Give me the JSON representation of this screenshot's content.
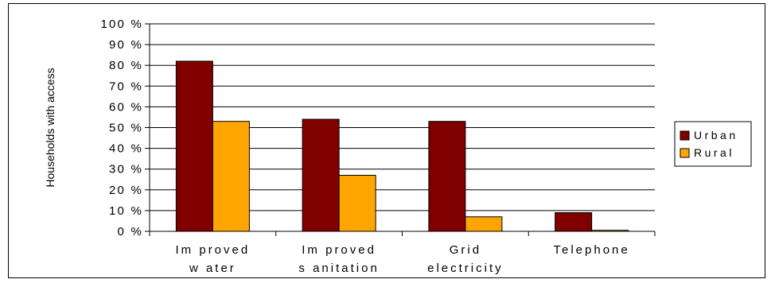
{
  "chart_data": {
    "type": "bar",
    "ylabel": "Households with access",
    "yticks": [
      "0 %",
      "10 %",
      "20 %",
      "30 %",
      "40 %",
      "50 %",
      "60 %",
      "70 %",
      "80 %",
      "90 %",
      "100 %"
    ],
    "ylim": [
      0,
      100
    ],
    "grid": true,
    "legend_position": "right",
    "categories": [
      [
        "Im proved",
        "w ater"
      ],
      [
        "Im proved",
        "s anitation"
      ],
      [
        "Grid",
        "electricity"
      ],
      [
        "Telephone"
      ]
    ],
    "series": [
      {
        "name": "Urban",
        "color": "#800000",
        "values": [
          82,
          54,
          53,
          9
        ]
      },
      {
        "name": "Rural",
        "color": "#FFA500",
        "values": [
          53,
          27,
          7,
          0.5
        ]
      }
    ]
  }
}
